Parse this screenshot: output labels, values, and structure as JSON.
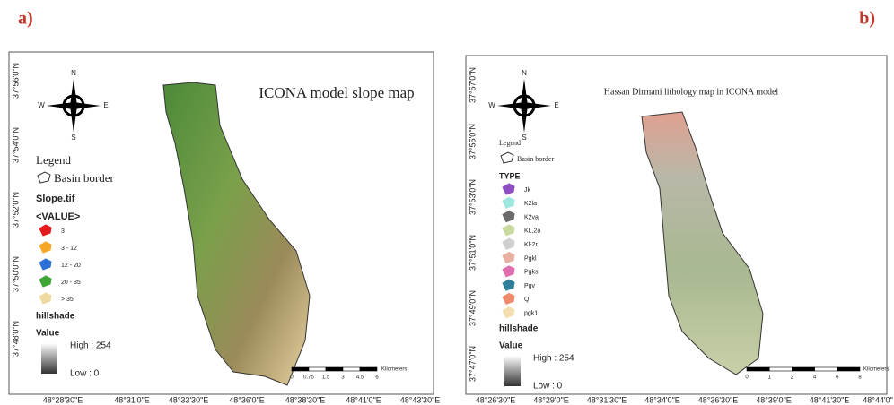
{
  "panels": [
    {
      "label": "a)",
      "title": "ICONA model slope map",
      "compass": {
        "n": "N",
        "e": "E",
        "s": "S",
        "w": "W"
      },
      "legend_title": "Legend",
      "basin_border": "Basin border",
      "layer_title": "Slope.tif",
      "layer_subtitle": "<VALUE>",
      "items": [
        {
          "label": "3",
          "color": "#e31a1c"
        },
        {
          "label": "3 - 12",
          "color": "#f5a623"
        },
        {
          "label": "12 - 20",
          "color": "#2c6fd6"
        },
        {
          "label": "20 - 35",
          "color": "#3fa535"
        },
        {
          "label": "> 35",
          "color": "#f0d9a0"
        }
      ],
      "hillshade": "hillshade",
      "value": "Value",
      "high": "High : 254",
      "low": "Low : 0",
      "lat_labels": [
        "37°56'0\"N",
        "37°54'0\"N",
        "37°52'0\"N",
        "37°50'0\"N",
        "37°48'0\"N"
      ],
      "lon_labels": [
        "48°28'30\"E",
        "48°31'0\"E",
        "48°33'30\"E",
        "48°36'0\"E",
        "48°38'30\"E",
        "48°41'0\"E",
        "48°43'30\"E"
      ],
      "scale_ticks": [
        "0",
        "0.75",
        "1.5",
        "3",
        "4.5",
        "6"
      ],
      "scale_unit": "Kilometers"
    },
    {
      "label": "b)",
      "title": "Hassan Dirmani lithology map in ICONA model",
      "compass": {
        "n": "N",
        "e": "E",
        "s": "S",
        "w": "W"
      },
      "legend_title": "Legend",
      "basin_border": "Basin border",
      "layer_title": "TYPE",
      "items": [
        {
          "label": "Jk",
          "color": "#8e4fc0"
        },
        {
          "label": "K2la",
          "color": "#9ee6e0"
        },
        {
          "label": "K2va",
          "color": "#6b6b6b"
        },
        {
          "label": "KL,2a",
          "color": "#c9d9a0"
        },
        {
          "label": "Kl-2r",
          "color": "#cfcfcf"
        },
        {
          "label": "Pgkl",
          "color": "#e8b0a0"
        },
        {
          "label": "Pgks",
          "color": "#e06fb0"
        },
        {
          "label": "Pgv",
          "color": "#2f7f9a"
        },
        {
          "label": "Q",
          "color": "#f08a6a"
        },
        {
          "label": "pgk1",
          "color": "#f3dfb0"
        }
      ],
      "hillshade": "hillshade",
      "value": "Value",
      "high": "High : 254",
      "low": "Low : 0",
      "lat_labels": [
        "37°57'0\"N",
        "37°55'0\"N",
        "37°53'0\"N",
        "37°51'0\"N",
        "37°49'0\"N",
        "37°47'0\"N"
      ],
      "lon_labels": [
        "48°26'30\"E",
        "48°29'0\"E",
        "48°31'30\"E",
        "48°34'0\"E",
        "48°36'30\"E",
        "48°39'0\"E",
        "48°41'30\"E",
        "48°44'0\""
      ],
      "scale_ticks": [
        "0",
        "1",
        "2",
        "4",
        "6",
        "8"
      ],
      "scale_unit": "Kilometers"
    }
  ]
}
